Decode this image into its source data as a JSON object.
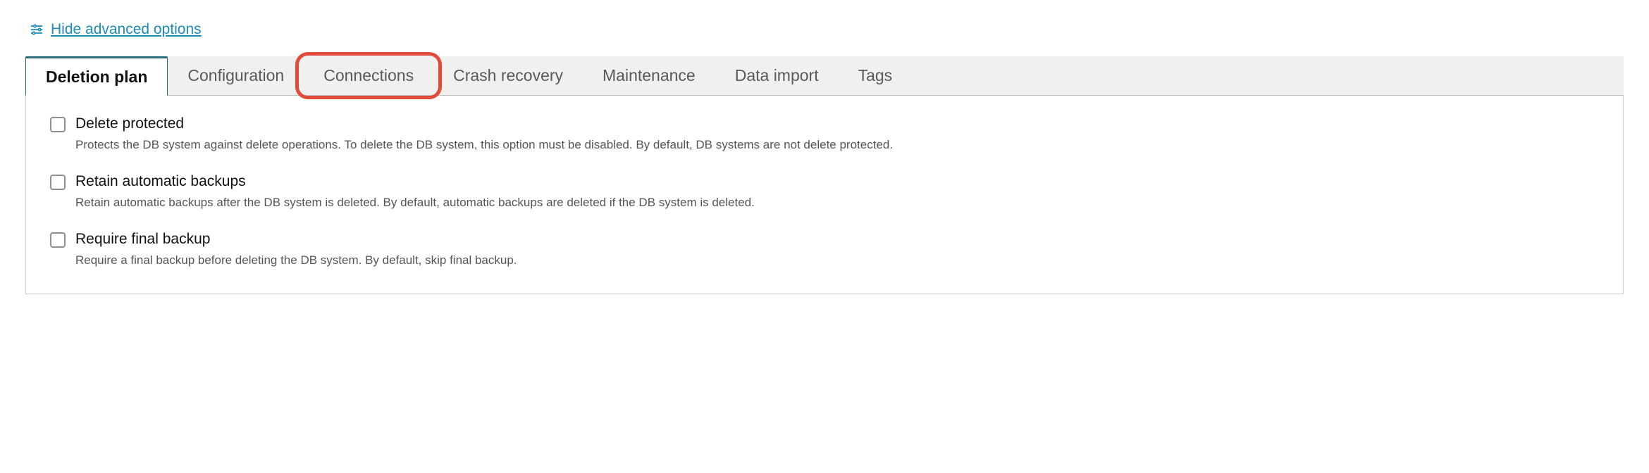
{
  "colors": {
    "link": "#1d8bb5",
    "tabs_bg": "#f0f0ef",
    "tabs_border": "#bfbfbf",
    "tab_inactive": "#595959",
    "active_border": "#2b6b7a",
    "highlight": "#e24b3a",
    "panel_border": "#cfcfcf",
    "checkbox_border": "#8f8f8f",
    "desc": "#555555"
  },
  "advanced_link": "Hide advanced options",
  "tabs": [
    {
      "id": "deletion-plan",
      "label": "Deletion plan",
      "active": true,
      "highlight": false
    },
    {
      "id": "configuration",
      "label": "Configuration",
      "active": false,
      "highlight": false
    },
    {
      "id": "connections",
      "label": "Connections",
      "active": false,
      "highlight": true
    },
    {
      "id": "crash-recovery",
      "label": "Crash recovery",
      "active": false,
      "highlight": false
    },
    {
      "id": "maintenance",
      "label": "Maintenance",
      "active": false,
      "highlight": false
    },
    {
      "id": "data-import",
      "label": "Data import",
      "active": false,
      "highlight": false
    },
    {
      "id": "tags",
      "label": "Tags",
      "active": false,
      "highlight": false
    }
  ],
  "options": [
    {
      "id": "delete-protected",
      "label": "Delete protected",
      "desc": "Protects the DB system against delete operations. To delete the DB system, this option must be disabled. By default, DB systems are not delete protected.",
      "checked": false
    },
    {
      "id": "retain-backups",
      "label": "Retain automatic backups",
      "desc": "Retain automatic backups after the DB system is deleted. By default, automatic backups are deleted if the DB system is deleted.",
      "checked": false
    },
    {
      "id": "require-final-backup",
      "label": "Require final backup",
      "desc": "Require a final backup before deleting the DB system. By default, skip final backup.",
      "checked": false
    }
  ]
}
